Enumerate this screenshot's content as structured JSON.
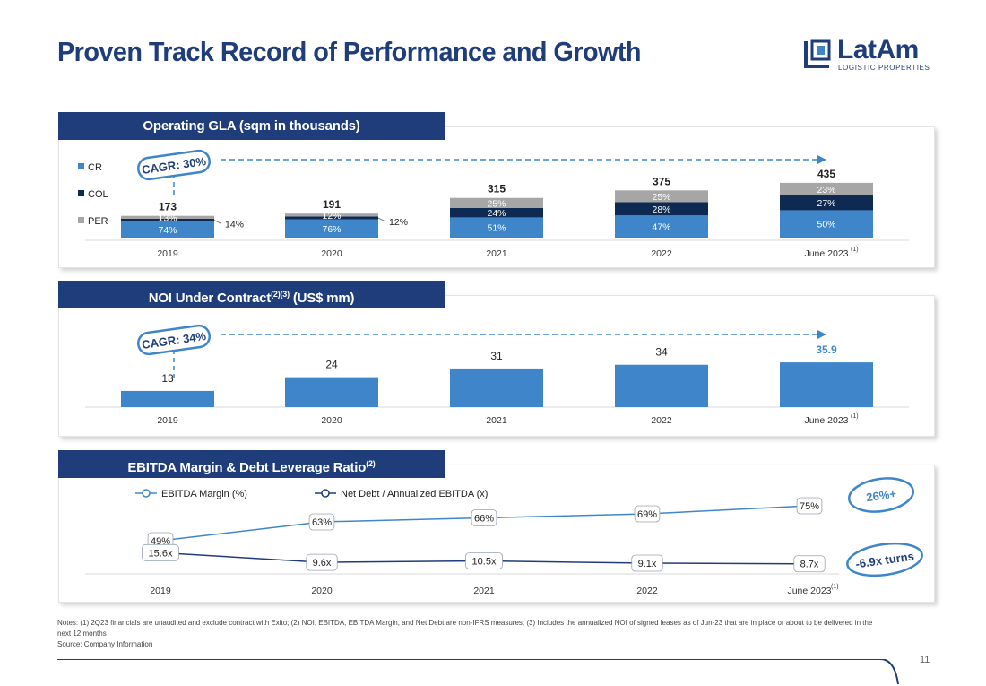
{
  "page": {
    "title": "Proven Track Record of Performance and Growth",
    "page_number": "11"
  },
  "logo": {
    "name": "LatAm",
    "subtitle": "LOGISTIC PROPERTIES"
  },
  "colors": {
    "navy": "#1f3d7a",
    "cr": "#3e86c9",
    "col": "#0e2a52",
    "per": "#a6a6a6"
  },
  "panels": {
    "gla_header": "Operating GLA (sqm in thousands)",
    "noi_header_main": "NOI Under Contract",
    "noi_header_sup": "(2)(3)",
    "noi_header_tail": " (US$ mm)",
    "ebitda_header_main": "EBITDA Margin & Debt Leverage Ratio",
    "ebitda_header_sup": "(2)"
  },
  "chart_data": [
    {
      "type": "bar",
      "stacked": true,
      "categories": [
        "2019",
        "2020",
        "2021",
        "2022",
        "June 2023"
      ],
      "category_footnotes": [
        "",
        "",
        "",
        "",
        "(1)"
      ],
      "totals": [
        173,
        191,
        315,
        375,
        435
      ],
      "series": [
        {
          "name": "CR",
          "color": "#3e86c9",
          "labels": [
            "74%",
            "76%",
            "51%",
            "47%",
            "50%"
          ]
        },
        {
          "name": "COL",
          "color": "#0e2a52",
          "labels": [
            "14%",
            "12%",
            "24%",
            "28%",
            "27%"
          ]
        },
        {
          "name": "PER",
          "color": "#a6a6a6",
          "labels": [
            "13%",
            "12%",
            "25%",
            "25%",
            "23%"
          ]
        }
      ],
      "annotation": "CAGR: 30%",
      "legend_position": "left"
    },
    {
      "type": "bar",
      "categories": [
        "2019",
        "2020",
        "2021",
        "2022",
        "June 2023"
      ],
      "category_footnotes": [
        "",
        "",
        "",
        "",
        "(1)"
      ],
      "values": [
        13,
        24,
        31,
        34,
        35.9
      ],
      "labels": [
        "13",
        "24",
        "31",
        "34",
        "35.9"
      ],
      "annotation": "CAGR: 34%"
    },
    {
      "type": "line",
      "categories": [
        "2019",
        "2020",
        "2021",
        "2022",
        "June 2023"
      ],
      "category_footnotes": [
        "",
        "",
        "",
        "",
        "(1)"
      ],
      "series": [
        {
          "name": "EBITDA Margin (%)",
          "color": "#3e86c9",
          "values": [
            49,
            63,
            66,
            69,
            75
          ],
          "labels": [
            "49%",
            "63%",
            "66%",
            "69%",
            "75%"
          ]
        },
        {
          "name": "Net Debt / Annualized EBITDA (x)",
          "color": "#1f3d7a",
          "values": [
            15.6,
            9.6,
            10.5,
            9.1,
            8.7
          ],
          "labels": [
            "15.6x",
            "9.6x",
            "10.5x",
            "9.1x",
            "8.7x"
          ]
        }
      ],
      "annotations": [
        "26%+",
        "-6.9x turns"
      ],
      "legend_position": "top"
    }
  ],
  "notes": {
    "line1": "Notes: (1) 2Q23 financials are unaudited and exclude contract with Exito; (2) NOI, EBITDA, EBITDA Margin, and Net Debt are non-IFRS measures; (3) Includes the annualized NOI of signed leases as of Jun-23 that are in place or about to be delivered in the next 12 months",
    "line2": "Source: Company Information"
  }
}
